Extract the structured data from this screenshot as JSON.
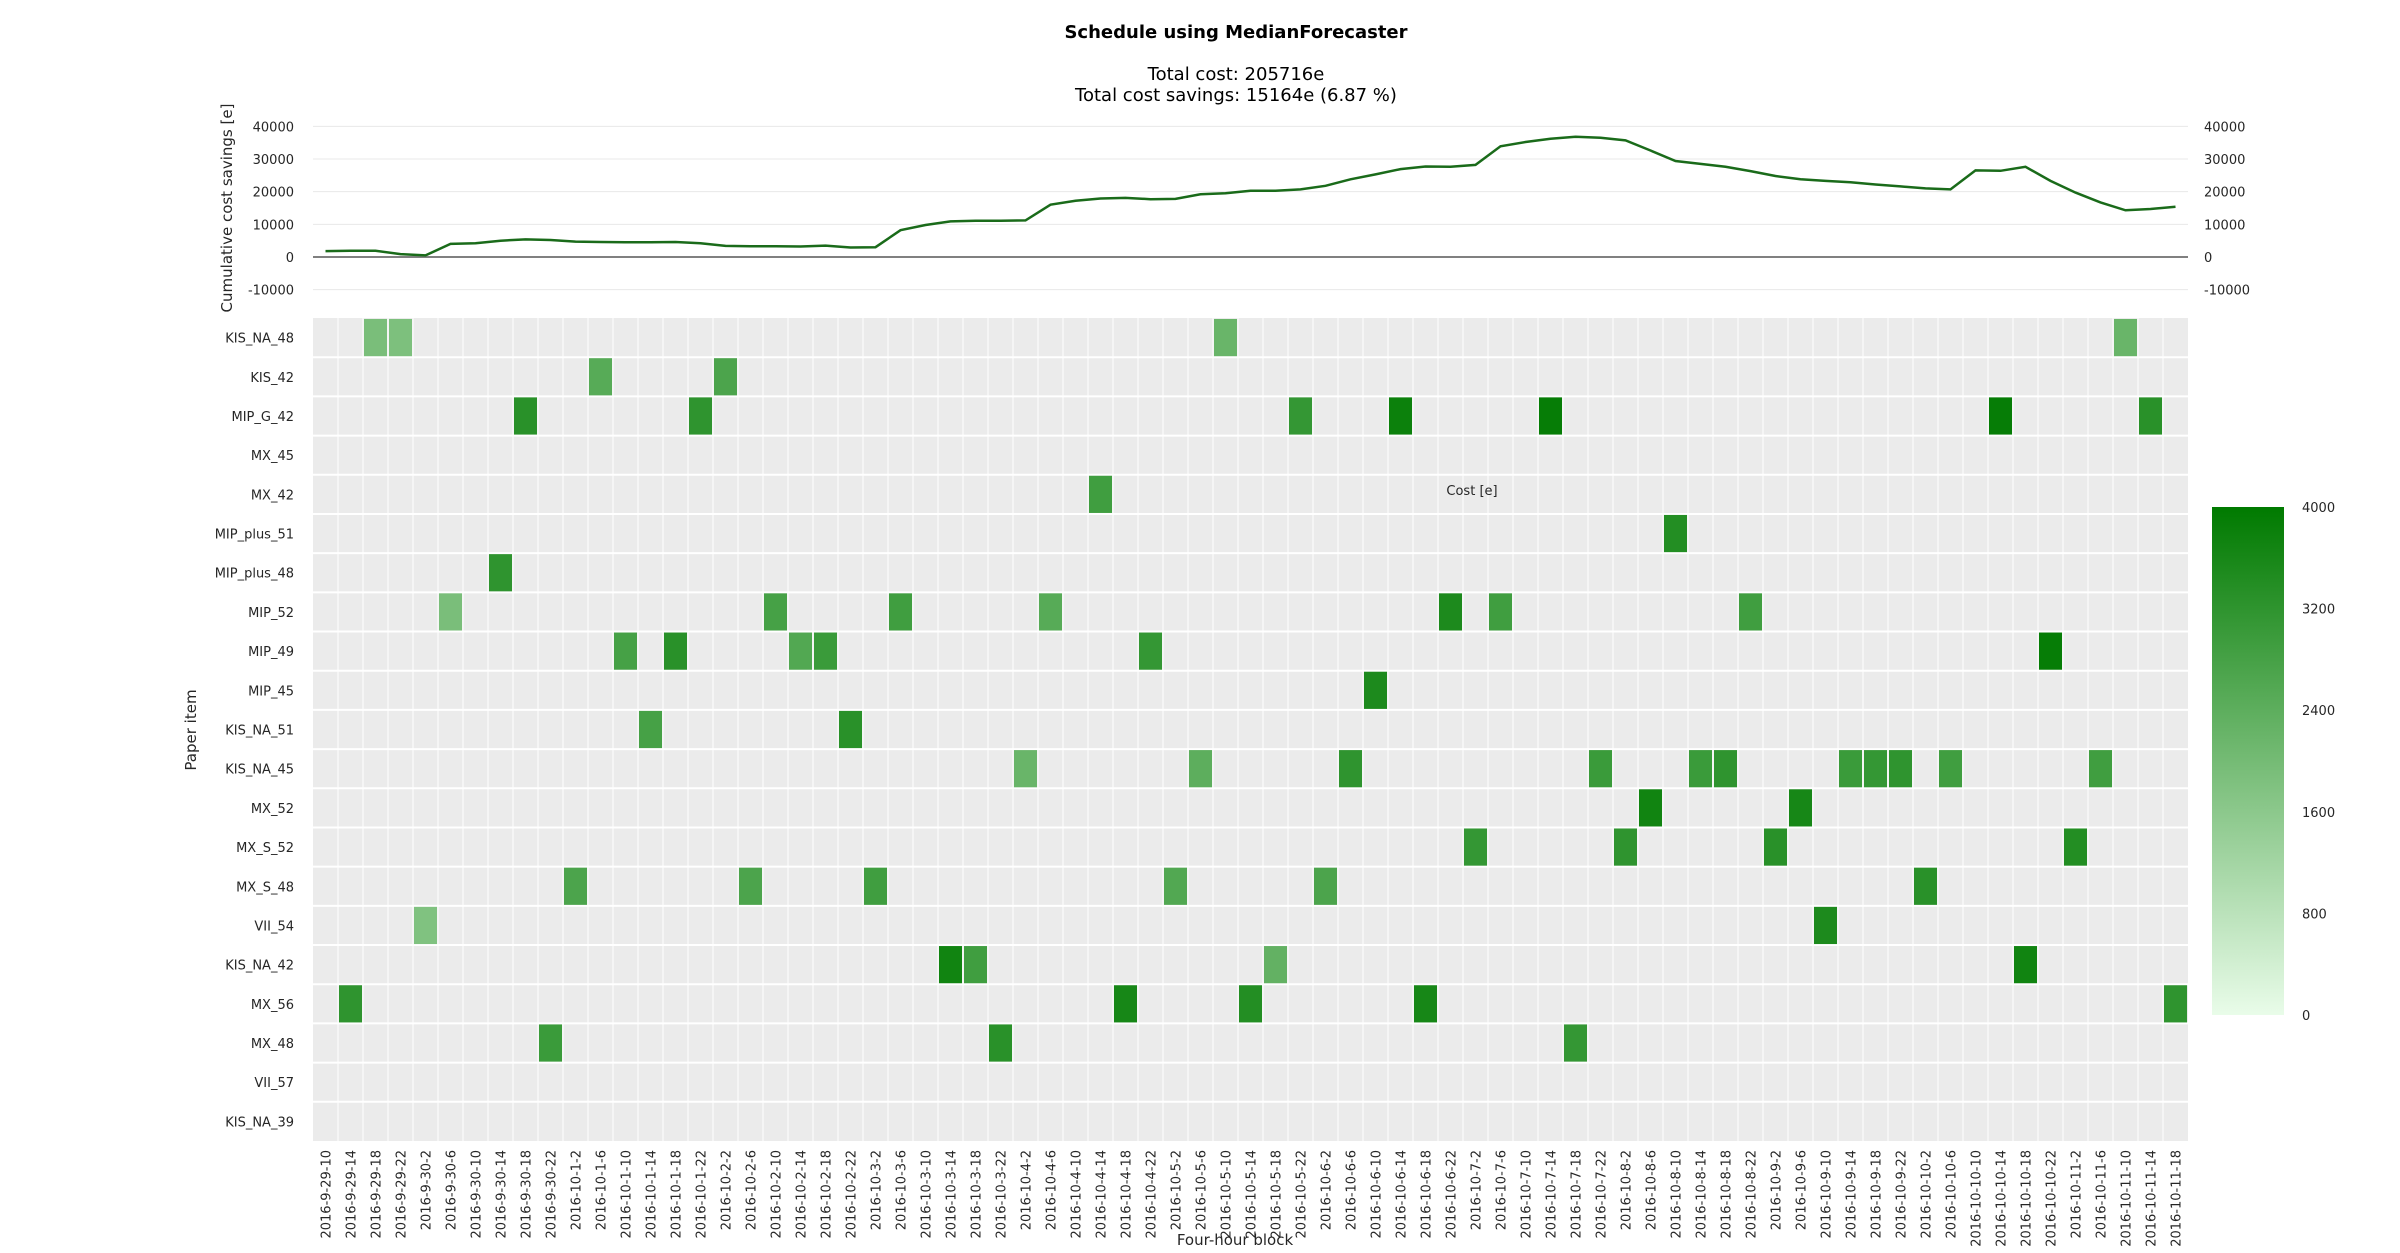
{
  "chart_data": {
    "type": "heatmap",
    "title": "Schedule using MedianForecaster",
    "subtitle_lines": [
      "Total cost: 205716e",
      "Total cost savings: 15164e (6.87 %)"
    ],
    "xlabel": "Four-hour block",
    "ylabel": "Paper item",
    "colorbar": {
      "label": "Cost [e]",
      "min": 0,
      "max": 4000,
      "ticks": [
        0,
        800,
        1600,
        2400,
        3200,
        4000
      ],
      "color_low": "#e9fce9",
      "color_high": "#007a00",
      "legend_position": "right"
    },
    "colors": {
      "background": "#ebebeb",
      "grid": "#ffffff",
      "line": "#1a6b1a",
      "zero_line": "#808080"
    },
    "x_categories": [
      "2016-9-29-10",
      "2016-9-29-14",
      "2016-9-29-18",
      "2016-9-29-22",
      "2016-9-30-2",
      "2016-9-30-6",
      "2016-9-30-10",
      "2016-9-30-14",
      "2016-9-30-18",
      "2016-9-30-22",
      "2016-10-1-2",
      "2016-10-1-6",
      "2016-10-1-10",
      "2016-10-1-14",
      "2016-10-1-18",
      "2016-10-1-22",
      "2016-10-2-2",
      "2016-10-2-6",
      "2016-10-2-10",
      "2016-10-2-14",
      "2016-10-2-18",
      "2016-10-2-22",
      "2016-10-3-2",
      "2016-10-3-6",
      "2016-10-3-10",
      "2016-10-3-14",
      "2016-10-3-18",
      "2016-10-3-22",
      "2016-10-4-2",
      "2016-10-4-6",
      "2016-10-4-10",
      "2016-10-4-14",
      "2016-10-4-18",
      "2016-10-4-22",
      "2016-10-5-2",
      "2016-10-5-6",
      "2016-10-5-10",
      "2016-10-5-14",
      "2016-10-5-18",
      "2016-10-5-22",
      "2016-10-6-2",
      "2016-10-6-6",
      "2016-10-6-10",
      "2016-10-6-14",
      "2016-10-6-18",
      "2016-10-6-22",
      "2016-10-7-2",
      "2016-10-7-6",
      "2016-10-7-10",
      "2016-10-7-14",
      "2016-10-7-18",
      "2016-10-7-22",
      "2016-10-8-2",
      "2016-10-8-6",
      "2016-10-8-10",
      "2016-10-8-14",
      "2016-10-8-18",
      "2016-10-8-22",
      "2016-10-9-2",
      "2016-10-9-6",
      "2016-10-9-10",
      "2016-10-9-14",
      "2016-10-9-18",
      "2016-10-9-22",
      "2016-10-10-2",
      "2016-10-10-6",
      "2016-10-10-10",
      "2016-10-10-14",
      "2016-10-10-18",
      "2016-10-10-22",
      "2016-10-11-2",
      "2016-10-11-6",
      "2016-10-11-10",
      "2016-10-11-14",
      "2016-10-11-18"
    ],
    "y_categories": [
      "KIS_NA_48",
      "KIS_42",
      "MIP_G_42",
      "MX_45",
      "MX_42",
      "MIP_plus_51",
      "MIP_plus_48",
      "MIP_52",
      "MIP_49",
      "MIP_45",
      "KIS_NA_51",
      "KIS_NA_45",
      "MX_52",
      "MX_S_52",
      "MX_S_48",
      "VII_54",
      "KIS_NA_42",
      "MX_56",
      "MX_48",
      "VII_57",
      "KIS_NA_39"
    ],
    "cells": [
      {
        "row": 0,
        "col": 2,
        "value": 1900
      },
      {
        "row": 0,
        "col": 3,
        "value": 1850
      },
      {
        "row": 0,
        "col": 36,
        "value": 2200
      },
      {
        "row": 0,
        "col": 72,
        "value": 2200
      },
      {
        "row": 1,
        "col": 11,
        "value": 2500
      },
      {
        "row": 1,
        "col": 16,
        "value": 2700
      },
      {
        "row": 2,
        "col": 8,
        "value": 3300
      },
      {
        "row": 2,
        "col": 15,
        "value": 3200
      },
      {
        "row": 2,
        "col": 39,
        "value": 3100
      },
      {
        "row": 2,
        "col": 43,
        "value": 3800
      },
      {
        "row": 2,
        "col": 49,
        "value": 3900
      },
      {
        "row": 2,
        "col": 67,
        "value": 3900
      },
      {
        "row": 2,
        "col": 73,
        "value": 3300
      },
      {
        "row": 4,
        "col": 31,
        "value": 2900
      },
      {
        "row": 5,
        "col": 54,
        "value": 3400
      },
      {
        "row": 6,
        "col": 7,
        "value": 3200
      },
      {
        "row": 7,
        "col": 5,
        "value": 1900
      },
      {
        "row": 7,
        "col": 18,
        "value": 2800
      },
      {
        "row": 7,
        "col": 23,
        "value": 2900
      },
      {
        "row": 7,
        "col": 29,
        "value": 2500
      },
      {
        "row": 7,
        "col": 45,
        "value": 3500
      },
      {
        "row": 7,
        "col": 47,
        "value": 2900
      },
      {
        "row": 7,
        "col": 57,
        "value": 2900
      },
      {
        "row": 8,
        "col": 12,
        "value": 2800
      },
      {
        "row": 8,
        "col": 14,
        "value": 3300
      },
      {
        "row": 8,
        "col": 19,
        "value": 2600
      },
      {
        "row": 8,
        "col": 20,
        "value": 3000
      },
      {
        "row": 8,
        "col": 33,
        "value": 3100
      },
      {
        "row": 8,
        "col": 69,
        "value": 3900
      },
      {
        "row": 9,
        "col": 42,
        "value": 3500
      },
      {
        "row": 10,
        "col": 13,
        "value": 2800
      },
      {
        "row": 10,
        "col": 21,
        "value": 3300
      },
      {
        "row": 11,
        "col": 28,
        "value": 2200
      },
      {
        "row": 11,
        "col": 35,
        "value": 2400
      },
      {
        "row": 11,
        "col": 41,
        "value": 3200
      },
      {
        "row": 11,
        "col": 51,
        "value": 3000
      },
      {
        "row": 11,
        "col": 55,
        "value": 3000
      },
      {
        "row": 11,
        "col": 56,
        "value": 3200
      },
      {
        "row": 11,
        "col": 61,
        "value": 3000
      },
      {
        "row": 11,
        "col": 62,
        "value": 3100
      },
      {
        "row": 11,
        "col": 63,
        "value": 3200
      },
      {
        "row": 11,
        "col": 65,
        "value": 2900
      },
      {
        "row": 11,
        "col": 71,
        "value": 2900
      },
      {
        "row": 12,
        "col": 53,
        "value": 3700
      },
      {
        "row": 12,
        "col": 59,
        "value": 3600
      },
      {
        "row": 13,
        "col": 46,
        "value": 3100
      },
      {
        "row": 13,
        "col": 52,
        "value": 3200
      },
      {
        "row": 13,
        "col": 58,
        "value": 3300
      },
      {
        "row": 13,
        "col": 70,
        "value": 3400
      },
      {
        "row": 14,
        "col": 10,
        "value": 2700
      },
      {
        "row": 14,
        "col": 17,
        "value": 2700
      },
      {
        "row": 14,
        "col": 22,
        "value": 2900
      },
      {
        "row": 14,
        "col": 34,
        "value": 2600
      },
      {
        "row": 14,
        "col": 40,
        "value": 2700
      },
      {
        "row": 14,
        "col": 64,
        "value": 3300
      },
      {
        "row": 15,
        "col": 4,
        "value": 1800
      },
      {
        "row": 15,
        "col": 60,
        "value": 3500
      },
      {
        "row": 16,
        "col": 25,
        "value": 3700
      },
      {
        "row": 16,
        "col": 26,
        "value": 2900
      },
      {
        "row": 16,
        "col": 38,
        "value": 2300
      },
      {
        "row": 16,
        "col": 68,
        "value": 3700
      },
      {
        "row": 17,
        "col": 1,
        "value": 3200
      },
      {
        "row": 17,
        "col": 32,
        "value": 3600
      },
      {
        "row": 17,
        "col": 37,
        "value": 3400
      },
      {
        "row": 17,
        "col": 44,
        "value": 3600
      },
      {
        "row": 17,
        "col": 74,
        "value": 3200
      },
      {
        "row": 18,
        "col": 9,
        "value": 3000
      },
      {
        "row": 18,
        "col": 27,
        "value": 3300
      },
      {
        "row": 18,
        "col": 50,
        "value": 3100
      }
    ],
    "line": {
      "ylabel": "Cumulative cost savings [e]",
      "ylim": [
        -15000,
        45000
      ],
      "yticks": [
        -10000,
        0,
        10000,
        20000,
        30000,
        40000
      ],
      "values": [
        1800,
        1900,
        1900,
        900,
        500,
        4000,
        4200,
        5000,
        5400,
        5200,
        4700,
        4600,
        4500,
        4500,
        4600,
        4200,
        3400,
        3300,
        3300,
        3200,
        3500,
        2900,
        3000,
        8200,
        9800,
        10900,
        11100,
        11100,
        11200,
        16000,
        17200,
        17900,
        18100,
        17700,
        17800,
        19200,
        19500,
        20300,
        20300,
        20700,
        21800,
        23800,
        25300,
        26900,
        27700,
        27600,
        28200,
        33900,
        35200,
        36200,
        36800,
        36500,
        35700,
        32600,
        29400,
        28500,
        27600,
        26300,
        24800,
        23800,
        23300,
        22900,
        22200,
        21600,
        21000,
        20700,
        26500,
        26400,
        27600,
        23300,
        19700,
        16700,
        14300,
        14700,
        15400
      ]
    }
  }
}
